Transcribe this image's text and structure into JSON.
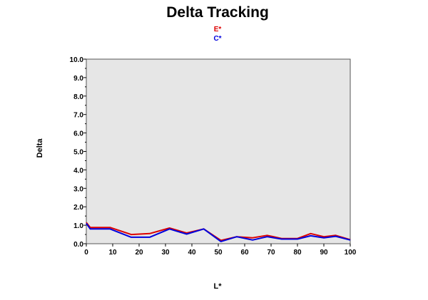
{
  "chart_data": {
    "type": "line",
    "title": "Delta Tracking",
    "xlabel": "L*",
    "ylabel": "Delta",
    "xlim": [
      0,
      100
    ],
    "ylim": [
      0,
      10
    ],
    "x_ticks": [
      "0",
      "10",
      "20",
      "30",
      "40",
      "50",
      "60",
      "70",
      "80",
      "90",
      "100"
    ],
    "y_ticks": [
      "0.0",
      "1.0",
      "2.0",
      "3.0",
      "4.0",
      "5.0",
      "6.0",
      "7.0",
      "8.0",
      "9.0",
      "10.0"
    ],
    "grid": false,
    "legend_position": "top-center",
    "plot_background": "#e6e6e6",
    "x": [
      0,
      1.5,
      9,
      17,
      24,
      31.5,
      38,
      44.5,
      51,
      57,
      63,
      68.5,
      74,
      80,
      85,
      90,
      94.5,
      100
    ],
    "series": [
      {
        "name": "E*",
        "color": "#dd0000",
        "values": [
          1.15,
          0.88,
          0.88,
          0.5,
          0.55,
          0.85,
          0.58,
          0.8,
          0.18,
          0.38,
          0.32,
          0.45,
          0.28,
          0.28,
          0.55,
          0.38,
          0.45,
          0.22
        ]
      },
      {
        "name": "C*",
        "color": "#0000dd",
        "values": [
          1.1,
          0.8,
          0.8,
          0.35,
          0.35,
          0.8,
          0.52,
          0.8,
          0.12,
          0.38,
          0.2,
          0.38,
          0.25,
          0.25,
          0.43,
          0.32,
          0.4,
          0.2
        ]
      }
    ]
  }
}
